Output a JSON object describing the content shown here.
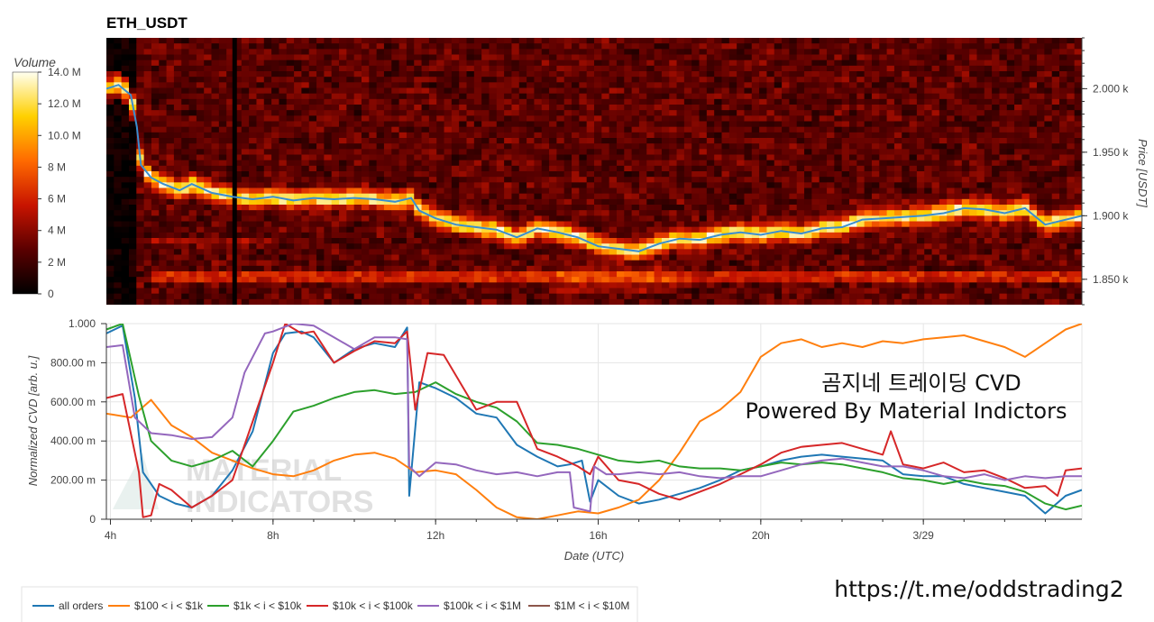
{
  "chart_data": [
    {
      "type": "heatmap",
      "title": "ETH_USDT",
      "ylabel": "Price [USDT]",
      "ylim": [
        1830,
        2040
      ],
      "y_ticks": [
        {
          "value": 2000,
          "label": "2.000 k"
        },
        {
          "value": 1950,
          "label": "1.950 k"
        },
        {
          "value": 1900,
          "label": "1.900 k"
        },
        {
          "value": 1850,
          "label": "1.850 k"
        }
      ],
      "colorbar": {
        "title": "Volume",
        "range": [
          0,
          14000000
        ],
        "ticks": [
          "0",
          "2 M",
          "4 M",
          "6 M",
          "8 M",
          "10.0 M",
          "12.0 M",
          "14.0 M"
        ]
      },
      "price_line": {
        "hours": [
          3.9,
          4.2,
          4.5,
          4.65,
          4.75,
          5,
          5.3,
          5.7,
          6,
          6.5,
          7,
          7.5,
          8,
          8.5,
          9,
          9.5,
          10,
          10.5,
          11,
          11.4,
          11.6,
          12,
          12.5,
          13,
          13.5,
          14,
          14.5,
          15,
          15.5,
          16,
          16.5,
          17,
          17.5,
          18,
          18.5,
          19,
          19.5,
          20,
          20.5,
          21,
          21.5,
          22,
          22.5,
          23,
          23.5,
          24,
          24.5,
          25,
          25.5,
          26,
          26.5,
          27,
          27.9
        ],
        "price": [
          2000,
          2003,
          1995,
          1970,
          1940,
          1930,
          1925,
          1920,
          1925,
          1918,
          1915,
          1913,
          1915,
          1912,
          1914,
          1913,
          1914,
          1913,
          1911,
          1914,
          1904,
          1898,
          1893,
          1891,
          1889,
          1883,
          1890,
          1887,
          1883,
          1876,
          1874,
          1872,
          1878,
          1882,
          1881,
          1885,
          1887,
          1885,
          1888,
          1886,
          1890,
          1891,
          1897,
          1898,
          1899,
          1900,
          1902,
          1906,
          1905,
          1902,
          1906,
          1893,
          1900
        ]
      }
    },
    {
      "type": "line",
      "xlabel": "Date (UTC)",
      "ylabel": "Normalized CVD [arb. u.]",
      "xlim": [
        3.9,
        27.9
      ],
      "ylim": [
        0,
        1000
      ],
      "x_ticks": [
        {
          "value": 4,
          "label": "4h"
        },
        {
          "value": 8,
          "label": "8h"
        },
        {
          "value": 12,
          "label": "12h"
        },
        {
          "value": 16,
          "label": "16h"
        },
        {
          "value": 20,
          "label": "20h"
        },
        {
          "value": 24,
          "label": "3/29"
        }
      ],
      "y_ticks": [
        {
          "value": 0,
          "label": "0"
        },
        {
          "value": 200,
          "label": "200.00 m"
        },
        {
          "value": 400,
          "label": "400.00 m"
        },
        {
          "value": 600,
          "label": "600.00 m"
        },
        {
          "value": 800,
          "label": "800.00 m"
        },
        {
          "value": 1000,
          "label": "1.000"
        }
      ],
      "series": [
        {
          "name": "all orders",
          "color": "#1f77b4",
          "x": [
            3.9,
            4.3,
            4.6,
            4.8,
            5.2,
            5.6,
            6,
            6.5,
            7,
            7.5,
            8,
            8.3,
            8.7,
            9,
            9.5,
            10,
            10.5,
            11,
            11.3,
            11.35,
            11.6,
            12,
            12.5,
            13,
            13.5,
            14,
            14.5,
            15,
            15.3,
            15.6,
            15.8,
            16,
            16.5,
            17,
            17.5,
            18,
            18.5,
            19,
            19.5,
            20,
            20.5,
            21,
            21.5,
            22,
            22.5,
            23,
            23.5,
            24,
            24.5,
            25,
            25.5,
            26,
            26.5,
            27,
            27.5,
            27.9
          ],
          "y": [
            950,
            990,
            620,
            240,
            120,
            80,
            60,
            120,
            250,
            450,
            850,
            950,
            960,
            930,
            800,
            870,
            900,
            880,
            980,
            120,
            700,
            670,
            620,
            540,
            520,
            380,
            320,
            270,
            280,
            300,
            90,
            200,
            120,
            80,
            100,
            130,
            160,
            200,
            250,
            270,
            300,
            320,
            330,
            320,
            310,
            300,
            230,
            220,
            220,
            180,
            160,
            140,
            120,
            30,
            120,
            150
          ]
        },
        {
          "name": "$100 < i < $1k",
          "color": "#ff7f0e",
          "x": [
            3.9,
            4.5,
            5,
            5.5,
            6,
            6.5,
            7,
            7.5,
            8,
            8.5,
            9,
            9.5,
            10,
            10.5,
            11,
            11.5,
            12,
            12.5,
            13,
            13.5,
            14,
            14.5,
            15,
            15.5,
            16,
            16.5,
            17,
            17.5,
            18,
            18.5,
            19,
            19.5,
            20,
            20.5,
            21,
            21.5,
            22,
            22.5,
            23,
            23.5,
            24,
            24.5,
            25,
            25.5,
            26,
            26.5,
            27,
            27.5,
            27.9
          ],
          "y": [
            540,
            520,
            610,
            480,
            420,
            340,
            300,
            260,
            230,
            220,
            250,
            300,
            330,
            340,
            310,
            240,
            250,
            230,
            150,
            60,
            10,
            0,
            20,
            40,
            30,
            60,
            100,
            200,
            340,
            500,
            560,
            650,
            830,
            900,
            920,
            880,
            900,
            880,
            910,
            900,
            920,
            930,
            940,
            910,
            880,
            830,
            900,
            970,
            1000
          ]
        },
        {
          "name": "$1k < i < $10k",
          "color": "#2ca02c",
          "x": [
            3.9,
            4.3,
            4.7,
            5,
            5.5,
            6,
            6.5,
            7,
            7.5,
            8,
            8.5,
            9,
            9.5,
            10,
            10.5,
            11,
            11.5,
            12,
            12.5,
            13,
            13.5,
            14,
            14.5,
            15,
            15.5,
            16,
            16.5,
            17,
            17.5,
            18,
            18.5,
            19,
            19.5,
            20,
            20.5,
            21,
            21.5,
            22,
            22.5,
            23,
            23.5,
            24,
            24.5,
            25,
            25.5,
            26,
            26.5,
            27,
            27.5,
            27.9
          ],
          "y": [
            970,
            1000,
            630,
            400,
            300,
            270,
            300,
            350,
            270,
            400,
            550,
            580,
            620,
            650,
            660,
            640,
            650,
            700,
            640,
            600,
            570,
            500,
            390,
            380,
            360,
            330,
            300,
            290,
            300,
            270,
            260,
            260,
            250,
            270,
            290,
            280,
            290,
            280,
            260,
            240,
            210,
            200,
            180,
            200,
            180,
            170,
            140,
            80,
            50,
            70
          ]
        },
        {
          "name": "$10k < i < $100k",
          "color": "#d62728",
          "x": [
            3.9,
            4.3,
            4.7,
            4.8,
            5,
            5.2,
            5.5,
            6,
            6.5,
            7,
            7.5,
            8,
            8.3,
            8.7,
            9,
            9.5,
            10,
            10.5,
            11,
            11.3,
            11.5,
            11.8,
            12.2,
            12.6,
            13,
            13.5,
            14,
            14.5,
            15,
            15.5,
            15.8,
            16,
            16.5,
            17,
            17.5,
            18,
            18.5,
            19,
            19.5,
            20,
            20.5,
            21,
            21.5,
            22,
            22.5,
            23,
            23.2,
            23.5,
            24,
            24.5,
            25,
            25.5,
            26,
            26.5,
            27,
            27.3,
            27.5,
            27.9
          ],
          "y": [
            620,
            640,
            240,
            10,
            20,
            180,
            150,
            60,
            120,
            200,
            500,
            800,
            1000,
            950,
            960,
            800,
            860,
            910,
            900,
            960,
            560,
            850,
            840,
            700,
            560,
            600,
            600,
            360,
            320,
            270,
            230,
            320,
            200,
            180,
            130,
            100,
            140,
            180,
            230,
            280,
            340,
            370,
            380,
            390,
            360,
            330,
            450,
            280,
            260,
            290,
            240,
            250,
            210,
            160,
            170,
            120,
            250,
            260
          ]
        },
        {
          "name": "$100k < i < $1M",
          "color": "#9467bd",
          "x": [
            3.9,
            4.3,
            4.6,
            5,
            5.5,
            6,
            6.5,
            7,
            7.3,
            7.8,
            8,
            8.5,
            9,
            9.5,
            10,
            10.5,
            11,
            11.3,
            11.35,
            11.6,
            12,
            12.5,
            13,
            13.5,
            14,
            14.5,
            15,
            15.3,
            15.4,
            15.8,
            15.9,
            16.2,
            16.5,
            17,
            17.5,
            18,
            18.5,
            19,
            19.5,
            20,
            20.5,
            21,
            21.5,
            22,
            22.5,
            23,
            23.5,
            24,
            24.5,
            25,
            25.5,
            26,
            26.5,
            27,
            27.5,
            27.9
          ],
          "y": [
            880,
            890,
            520,
            440,
            430,
            410,
            420,
            520,
            750,
            950,
            960,
            1000,
            990,
            930,
            870,
            930,
            930,
            920,
            270,
            220,
            290,
            280,
            250,
            230,
            240,
            220,
            240,
            240,
            60,
            40,
            270,
            230,
            230,
            240,
            230,
            240,
            220,
            210,
            220,
            220,
            250,
            280,
            300,
            310,
            290,
            270,
            270,
            250,
            220,
            210,
            230,
            200,
            220,
            210,
            220,
            220
          ]
        }
      ]
    }
  ],
  "legend": {
    "items": [
      {
        "label": "all orders",
        "color": "#1f77b4"
      },
      {
        "label": "$100 < i < $1k",
        "color": "#ff7f0e"
      },
      {
        "label": "$1k < i < $10k",
        "color": "#2ca02c"
      },
      {
        "label": "$10k < i < $100k",
        "color": "#d62728"
      },
      {
        "label": "$100k < i < $1M",
        "color": "#9467bd"
      },
      {
        "label": "$1M < i < $10M",
        "color": "#8c564b"
      }
    ]
  },
  "overlay": {
    "line1": "곰지네 트레이딩 CVD",
    "line2": "Powered By Material Indictors",
    "link": "https://t.me/oddstrading2"
  },
  "watermark": {
    "line1": "MATERIAL",
    "line2": "INDICATORS"
  }
}
